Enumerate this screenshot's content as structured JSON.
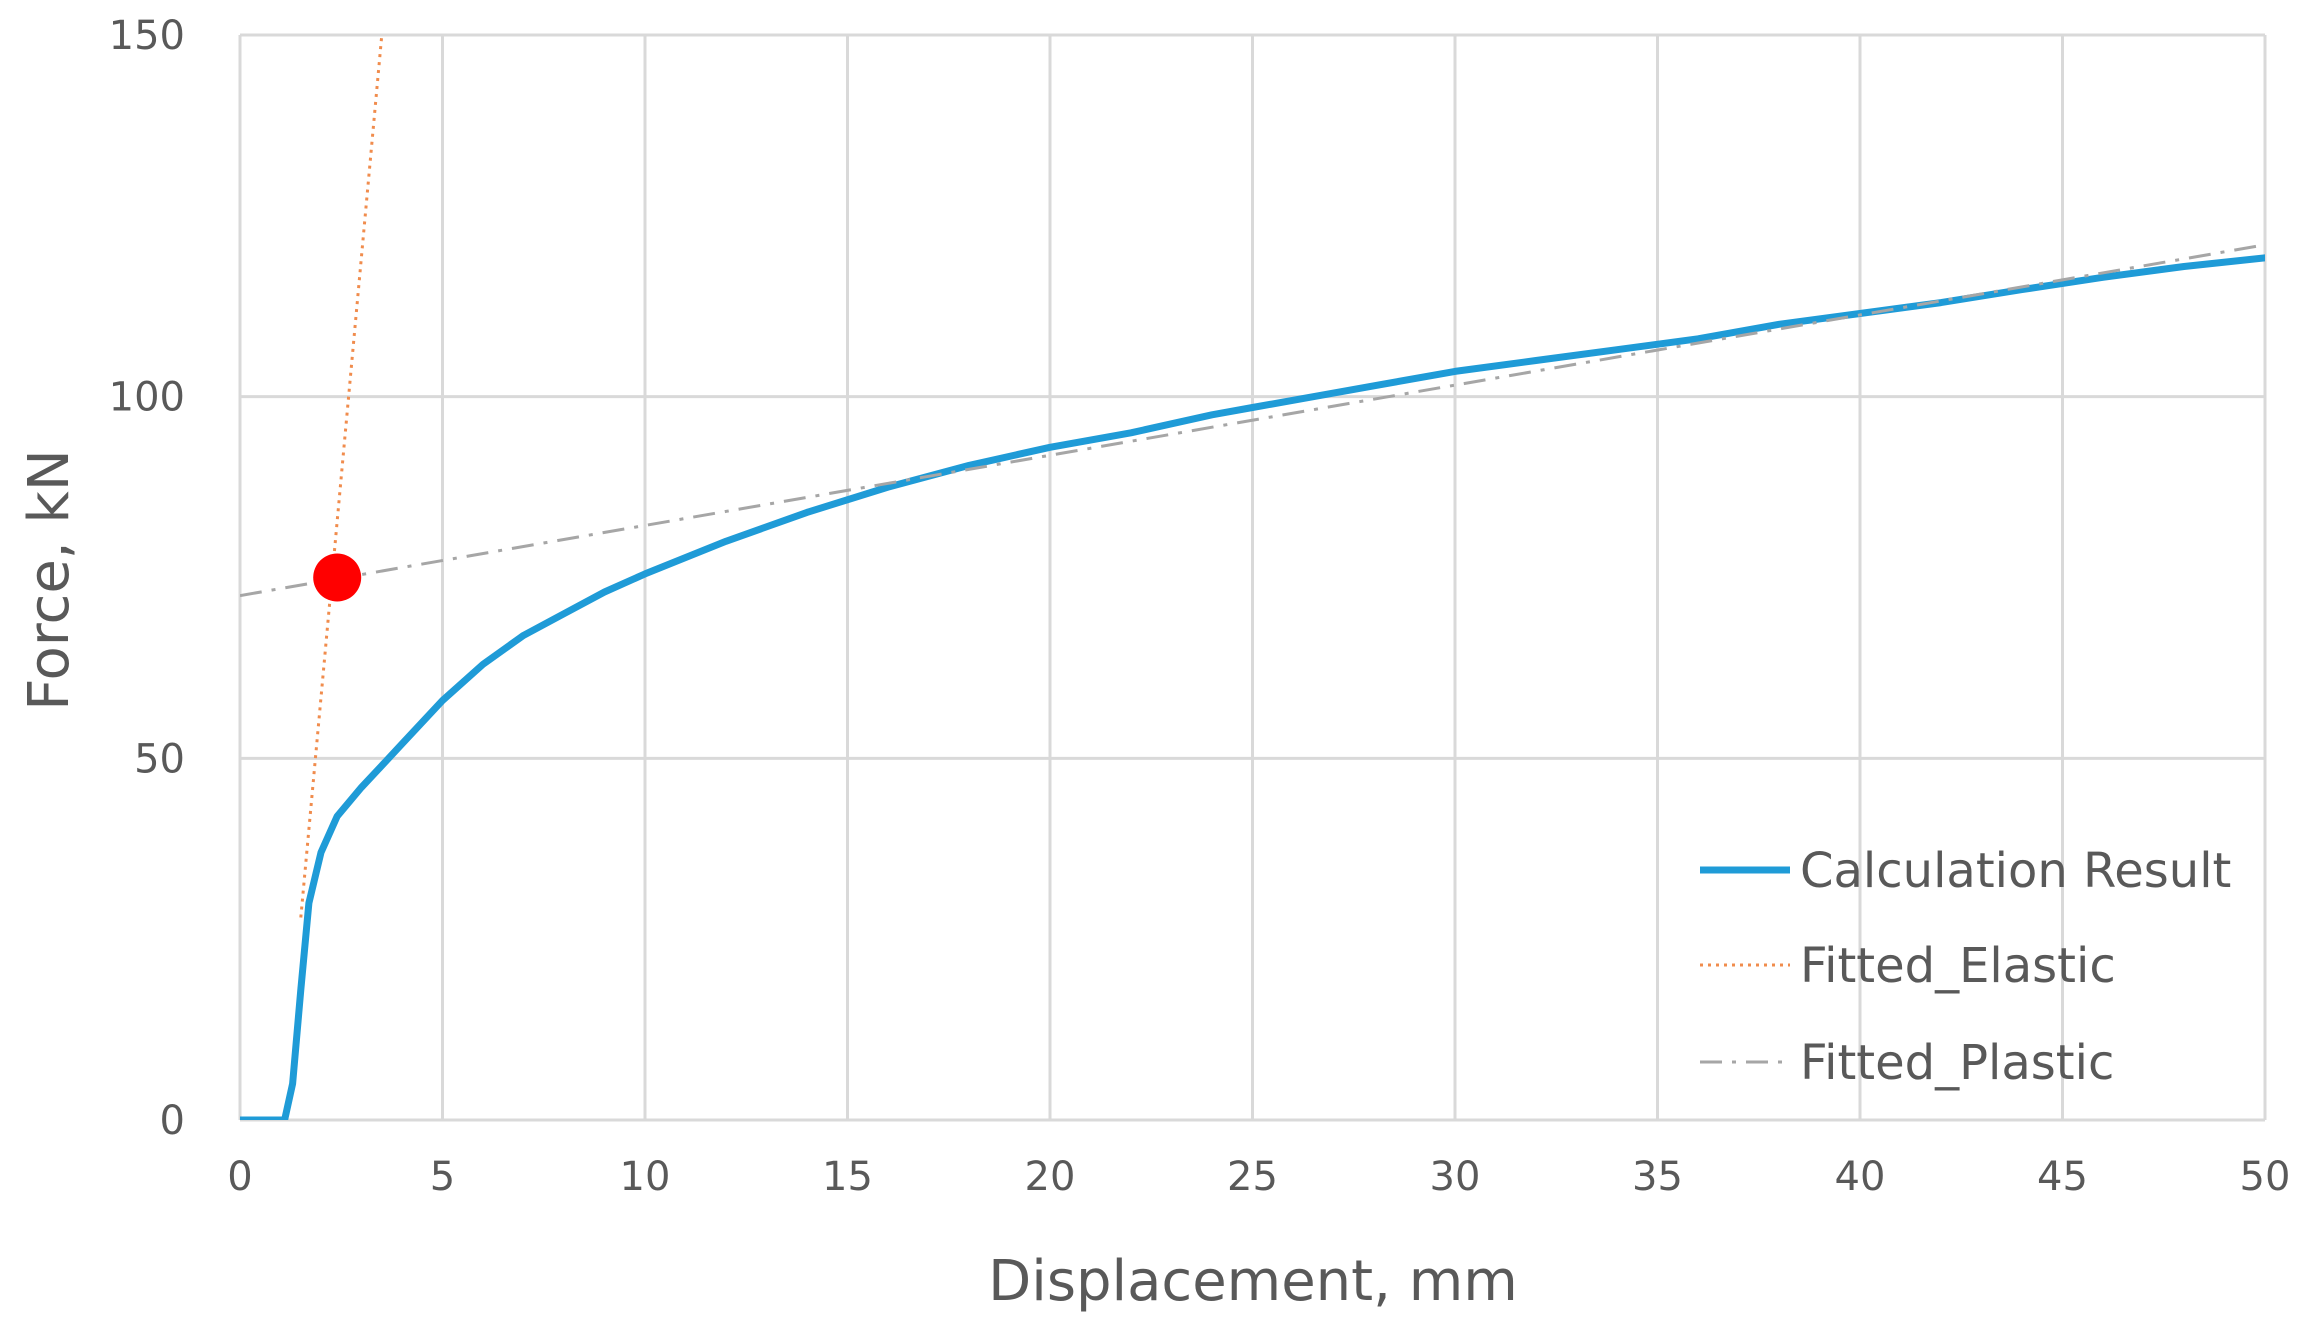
{
  "chart_data": {
    "type": "line",
    "title": "",
    "xlabel": "Displacement, mm",
    "ylabel": "Force, kN",
    "xlim": [
      0,
      50
    ],
    "ylim": [
      0,
      150
    ],
    "xticks": [
      0,
      5,
      10,
      15,
      20,
      25,
      30,
      35,
      40,
      45,
      50
    ],
    "yticks": [
      0,
      50,
      100,
      150
    ],
    "grid": true,
    "legend_position": "bottom-right",
    "series": [
      {
        "name": "Calculation Result",
        "style": "solid",
        "color": "#1f9bd7",
        "x": [
          0,
          1.1,
          1.3,
          1.5,
          1.7,
          2.0,
          2.4,
          3.0,
          3.5,
          4.0,
          5.0,
          6.0,
          7.0,
          8.0,
          9.0,
          10.0,
          12.0,
          14.0,
          16.0,
          18.0,
          20.0,
          22.0,
          24.0,
          25.0,
          26.0,
          28.0,
          30.0,
          32.0,
          34.0,
          36.0,
          38.0,
          40.0,
          42.0,
          44.0,
          46.0,
          48.0,
          50.0
        ],
        "y": [
          0,
          0,
          5,
          18,
          30,
          37,
          42,
          46,
          49,
          52,
          58,
          63,
          67,
          70,
          73,
          75.5,
          80,
          84,
          87.5,
          90.5,
          93,
          95,
          97.5,
          98.5,
          99.5,
          101.5,
          103.5,
          105,
          106.5,
          108,
          110,
          111.5,
          113,
          114.8,
          116.5,
          118,
          119.2
        ]
      },
      {
        "name": "Fitted_Elastic",
        "style": "dotted",
        "color": "#f08c4d",
        "x": [
          1.5,
          3.5
        ],
        "y": [
          28,
          150
        ]
      },
      {
        "name": "Fitted_Plastic",
        "style": "dash-dot",
        "color": "#a6a6a6",
        "x": [
          0,
          50
        ],
        "y": [
          72.5,
          121
        ]
      }
    ],
    "marker": {
      "x": 2.4,
      "y": 75,
      "color": "#ff0000"
    }
  }
}
